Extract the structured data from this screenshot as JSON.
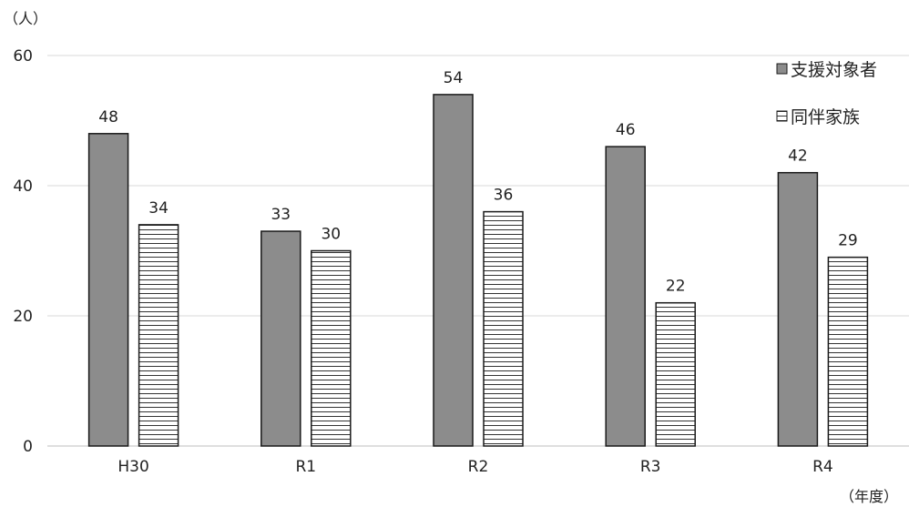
{
  "chart_data": {
    "type": "bar",
    "categories": [
      "H30",
      "R1",
      "R2",
      "R3",
      "R4"
    ],
    "series": [
      {
        "name": "支援対象者",
        "values": [
          48,
          33,
          54,
          46,
          42
        ],
        "fill": "#8c8c8c",
        "pattern": "solid"
      },
      {
        "name": "同伴家族",
        "values": [
          34,
          30,
          36,
          22,
          29
        ],
        "fill": "#ffffff",
        "pattern": "horizontal-lines"
      }
    ],
    "yticks": [
      0,
      20,
      40,
      60
    ],
    "ylim": [
      0,
      60
    ],
    "y_unit_label": "（人）",
    "x_unit_label": "（年度）",
    "grid": true,
    "legend_position": "top-right",
    "colors": {
      "bar_stroke": "#1a1a1a",
      "grid": "#d9d9d9",
      "axis": "#bfbfbf",
      "text": "#222222"
    }
  }
}
